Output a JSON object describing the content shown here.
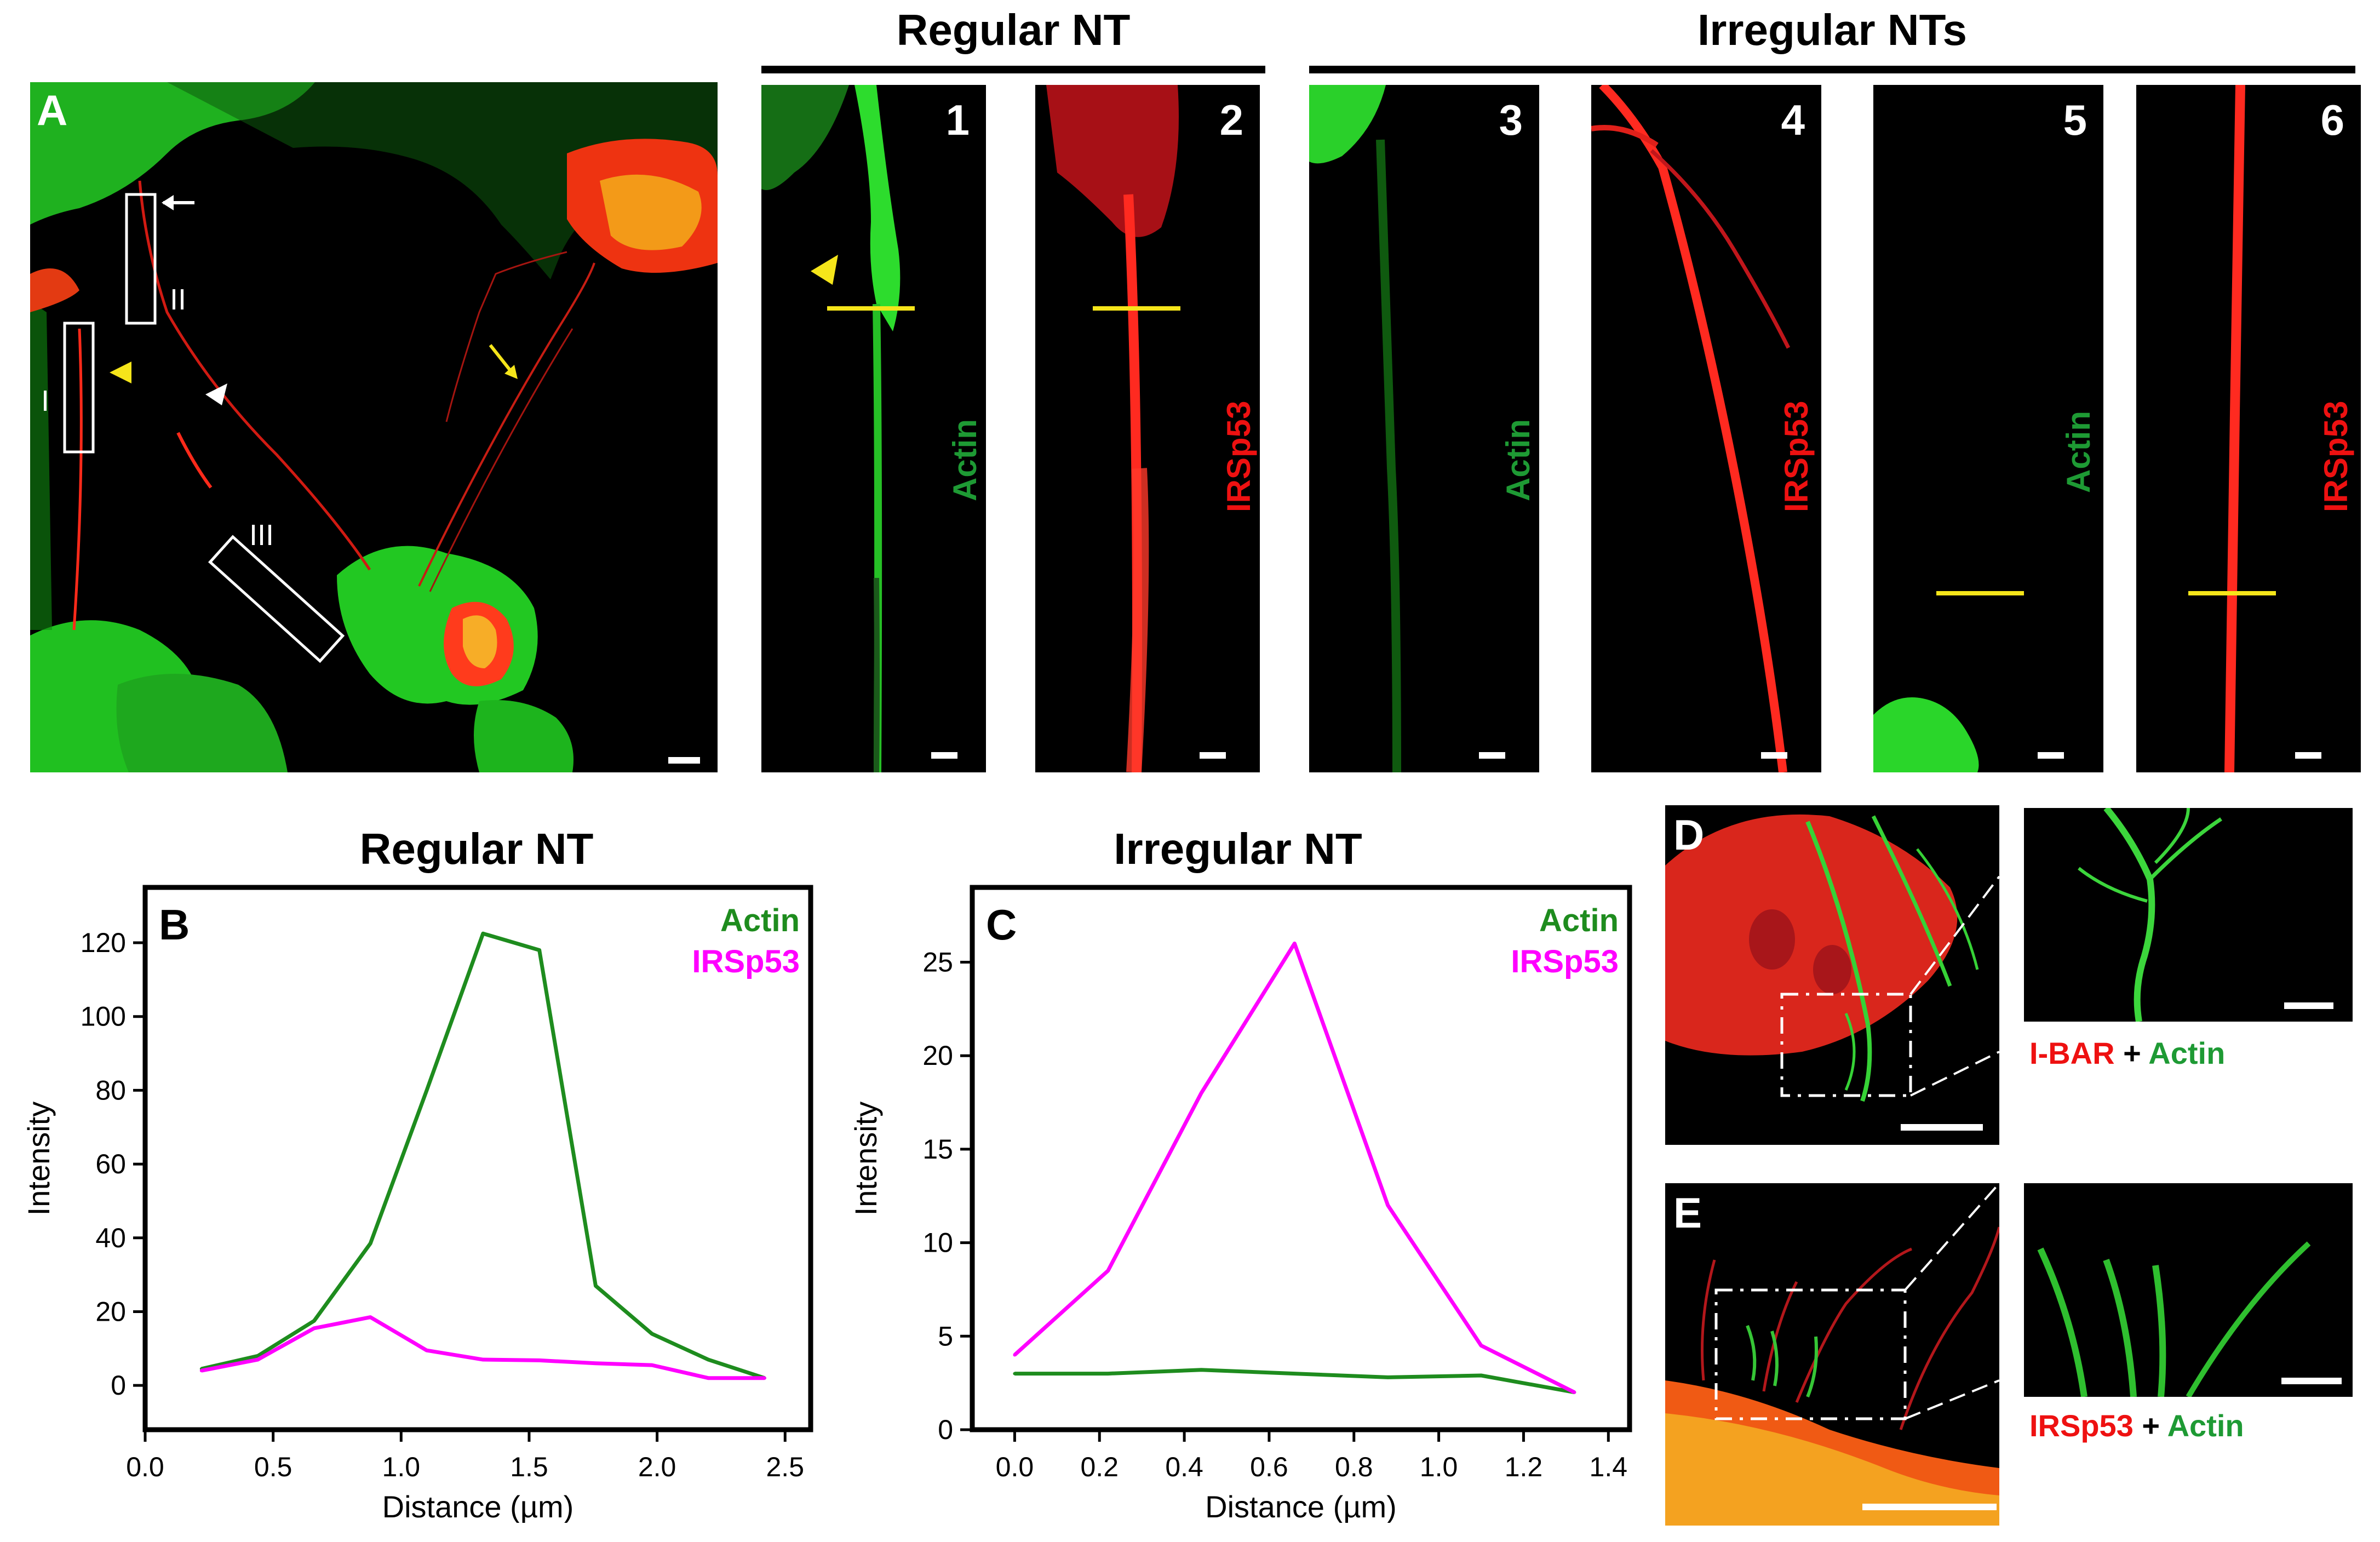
{
  "panel_A": {
    "label": "A",
    "roi_labels": [
      "I",
      "II",
      "III"
    ]
  },
  "groups": {
    "regular_title": "Regular NT",
    "irregular_title": "Irregular NTs"
  },
  "strips": [
    {
      "number": "1",
      "stain": "Actin"
    },
    {
      "number": "2",
      "stain": "IRSp53"
    },
    {
      "number": "3",
      "stain": "Actin"
    },
    {
      "number": "4",
      "stain": "IRSp53"
    },
    {
      "number": "5",
      "stain": "Actin"
    },
    {
      "number": "6",
      "stain": "IRSp53"
    }
  ],
  "panel_D": {
    "label": "D",
    "caption_red": "I-BAR",
    "caption_plus": " + ",
    "caption_green": "Actin"
  },
  "panel_E": {
    "label": "E",
    "caption_red": "IRSp53",
    "caption_plus": " + ",
    "caption_green": "Actin"
  },
  "colors": {
    "actin": "#1e8c1e",
    "irsp53_plot": "#ff00ff",
    "irsp53_text": "#ee1111",
    "actin_text": "#1e9a34",
    "fluor_green": "#22dd22",
    "fluor_red": "#ff2222"
  },
  "chart_data": [
    {
      "panel": "B",
      "type": "line",
      "title": "Regular NT",
      "xlabel": "Distance (µm)",
      "ylabel": "Intensity",
      "xlim": [
        0.0,
        2.6
      ],
      "ylim": [
        -12,
        135
      ],
      "xticks": [
        0.0,
        0.5,
        1.0,
        1.5,
        2.0,
        2.5
      ],
      "xtick_labels": [
        "0.0",
        "0.5",
        "1.0",
        "1.5",
        "2.0",
        "2.5"
      ],
      "yticks": [
        0,
        20,
        40,
        60,
        80,
        100,
        120
      ],
      "ytick_labels": [
        "0",
        "20",
        "40",
        "60",
        "80",
        "100",
        "120"
      ],
      "legend": [
        "Actin",
        "IRSp53"
      ],
      "legend_position": "top-right",
      "series": [
        {
          "name": "Actin",
          "color": "#1e8c1e",
          "x": [
            0.22,
            0.44,
            0.66,
            0.88,
            1.1,
            1.32,
            1.54,
            1.76,
            1.98,
            2.2,
            2.42
          ],
          "y": [
            4.5,
            8,
            17.5,
            38.5,
            80,
            122.5,
            118,
            27,
            14,
            7,
            2
          ]
        },
        {
          "name": "IRSp53",
          "color": "#ff00ff",
          "x": [
            0.22,
            0.44,
            0.66,
            0.88,
            1.1,
            1.32,
            1.54,
            1.76,
            1.98,
            2.2,
            2.42
          ],
          "y": [
            4,
            7,
            15.5,
            18.5,
            9.5,
            7,
            6.8,
            6,
            5.5,
            2,
            2
          ]
        }
      ]
    },
    {
      "panel": "C",
      "type": "line",
      "title": "Irregular NT",
      "xlabel": "Distance (µm)",
      "ylabel": "Intensity",
      "xlim": [
        -0.1,
        1.45
      ],
      "ylim": [
        0,
        29
      ],
      "xticks": [
        0.0,
        0.2,
        0.4,
        0.6,
        0.8,
        1.0,
        1.2,
        1.4
      ],
      "xtick_labels": [
        "0.0",
        "0.2",
        "0.4",
        "0.6",
        "0.8",
        "1.0",
        "1.2",
        "1.4"
      ],
      "yticks": [
        0,
        5,
        10,
        15,
        20,
        25
      ],
      "ytick_labels": [
        "0",
        "5",
        "10",
        "15",
        "20",
        "25"
      ],
      "legend": [
        "Actin",
        "IRSp53"
      ],
      "legend_position": "top-right",
      "series": [
        {
          "name": "Actin",
          "color": "#1e8c1e",
          "x": [
            0.0,
            0.22,
            0.44,
            0.66,
            0.88,
            1.1,
            1.32
          ],
          "y": [
            3,
            3,
            3.2,
            3,
            2.8,
            2.9,
            2
          ]
        },
        {
          "name": "IRSp53",
          "color": "#ff00ff",
          "x": [
            0.0,
            0.22,
            0.44,
            0.66,
            0.88,
            1.1,
            1.32
          ],
          "y": [
            4,
            8.5,
            18,
            26,
            12,
            4.5,
            2
          ]
        }
      ]
    }
  ]
}
